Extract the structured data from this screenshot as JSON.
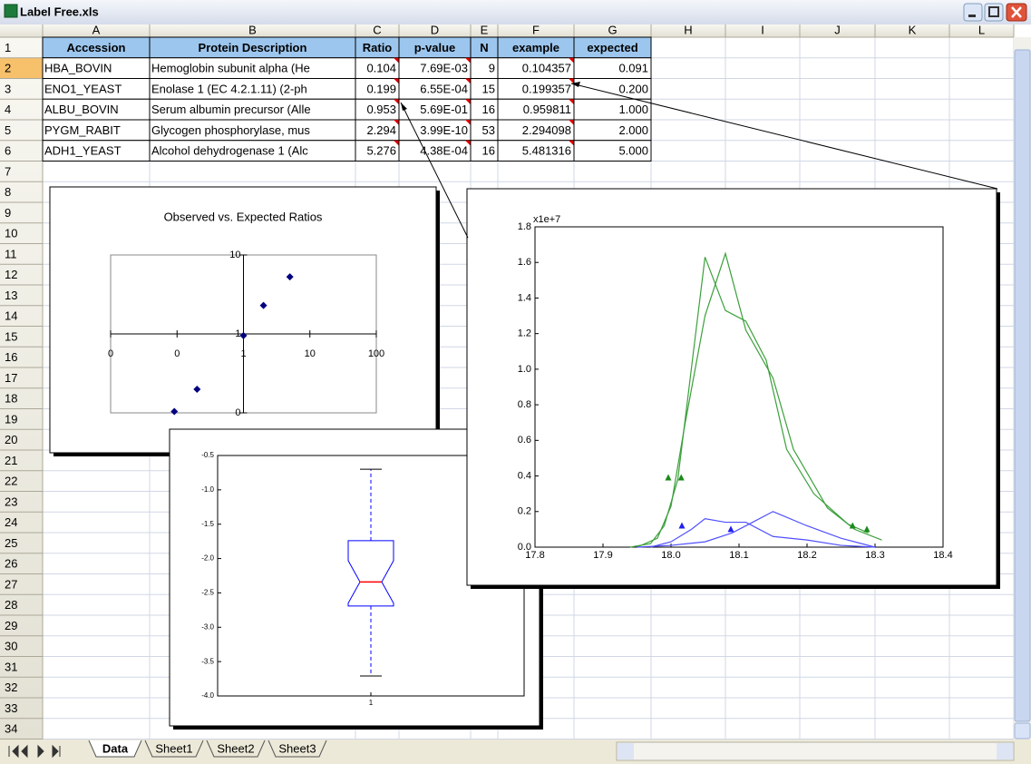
{
  "window": {
    "title": "Label Free.xls"
  },
  "columns": [
    "A",
    "B",
    "C",
    "D",
    "E",
    "F",
    "G",
    "H",
    "I",
    "J",
    "K",
    "L"
  ],
  "row_numbers": [
    1,
    2,
    3,
    4,
    5,
    6,
    7,
    8,
    9,
    10,
    11,
    12,
    13,
    14,
    15,
    16,
    17,
    18,
    19,
    20,
    21,
    22,
    23,
    24,
    25,
    26,
    27,
    28,
    29,
    30,
    31,
    32,
    33,
    34
  ],
  "table": {
    "header": [
      "Accession",
      "Protein Description",
      "Ratio",
      "p-value",
      "N",
      "example",
      "expected"
    ],
    "rows": [
      [
        "HBA_BOVIN",
        "Hemoglobin subunit alpha (He",
        "0.104",
        "7.69E-03",
        "9",
        "0.104357",
        "0.091"
      ],
      [
        "ENO1_YEAST",
        "Enolase 1 (EC 4.2.1.11) (2-ph",
        "0.199",
        "6.55E-04",
        "15",
        "0.199357",
        "0.200"
      ],
      [
        "ALBU_BOVIN",
        "Serum albumin precursor (Alle",
        "0.953",
        "5.69E-01",
        "16",
        "0.959811",
        "1.000"
      ],
      [
        "PYGM_RABIT",
        "Glycogen phosphorylase, mus",
        "2.294",
        "3.99E-10",
        "53",
        "2.294098",
        "2.000"
      ],
      [
        "ADH1_YEAST",
        "Alcohol dehydrogenase 1 (Alc",
        "5.276",
        "4.38E-04",
        "16",
        "5.481316",
        "5.000"
      ]
    ]
  },
  "sheet_tabs": [
    "Data",
    "Sheet1",
    "Sheet2",
    "Sheet3"
  ],
  "chart_data": [
    {
      "type": "scatter",
      "title": "Observed vs. Expected Ratios",
      "color": "#000080",
      "log_x": true,
      "log_y": true,
      "x_axis_at": 1,
      "y_axis_at": 1,
      "x": [
        0.091,
        0.2,
        1,
        2,
        5
      ],
      "values": [
        0.104,
        0.199,
        0.953,
        2.294,
        5.276
      ],
      "xlim": [
        0.01,
        100
      ],
      "ylim": [
        0.1,
        10
      ],
      "xticks": [
        {
          "value": 0.01,
          "label": "0"
        },
        {
          "value": 0.1,
          "label": "0"
        },
        1,
        10,
        100
      ],
      "yticks": [
        {
          "value": 0.1,
          "label": "0"
        },
        1,
        10
      ]
    },
    {
      "type": "box",
      "categories": [
        "1"
      ],
      "color": "#0000ff",
      "median_color": "#ff0000",
      "boxes": [
        {
          "whisker_low": -3.71,
          "q1": -2.69,
          "notch_low": -2.65,
          "median": -2.34,
          "notch_high": -2.03,
          "q3": -1.74,
          "whisker_high": -0.7
        }
      ],
      "ylim": [
        -4,
        -0.5
      ],
      "yticks": [
        {
          "value": -4,
          "label": "-4.0"
        },
        -3.5,
        {
          "value": -3,
          "label": "-3.0"
        },
        -2.5,
        {
          "value": -2,
          "label": "-2.0"
        },
        -1.5,
        {
          "value": -1,
          "label": "-1.0"
        },
        -0.5
      ]
    },
    {
      "type": "line",
      "y_scale_label": "x1e+7",
      "series": [
        {
          "color": "#3ca03c",
          "x": [
            17.94,
            17.97,
            17.99,
            18.01,
            18.05,
            18.08,
            18.11,
            18.14,
            18.17,
            18.21,
            18.26,
            18.29
          ],
          "values": [
            0,
            0.02,
            0.12,
            0.38,
            1.63,
            1.33,
            1.27,
            1.05,
            0.55,
            0.3,
            0.13,
            0.08
          ]
        },
        {
          "color": "#3ca03c",
          "x": [
            17.95,
            17.98,
            18.0,
            18.02,
            18.05,
            18.08,
            18.11,
            18.15,
            18.18,
            18.23,
            18.27,
            18.31
          ],
          "values": [
            0,
            0.05,
            0.23,
            0.68,
            1.3,
            1.65,
            1.22,
            0.95,
            0.55,
            0.22,
            0.1,
            0.04
          ]
        },
        {
          "color": "#5050ff",
          "x": [
            17.97,
            18.0,
            18.03,
            18.05,
            18.08,
            18.11,
            18.15,
            18.2,
            18.25,
            18.3
          ],
          "values": [
            0,
            0.03,
            0.1,
            0.16,
            0.14,
            0.14,
            0.06,
            0.04,
            0.01,
            0
          ]
        },
        {
          "color": "#5050ff",
          "x": [
            17.95,
            18.0,
            18.05,
            18.09,
            18.12,
            18.15,
            18.2,
            18.25,
            18.3
          ],
          "values": [
            0,
            0.01,
            0.03,
            0.08,
            0.14,
            0.2,
            0.12,
            0.05,
            0
          ]
        }
      ],
      "markers": [
        {
          "color": "#1a8a1a",
          "x": [
            17.996,
            18.015,
            18.267,
            18.288
          ],
          "values": [
            0.39,
            0.39,
            0.12,
            0.1
          ]
        },
        {
          "color": "#2020ee",
          "x": [
            18.016,
            18.088
          ],
          "values": [
            0.12,
            0.1
          ]
        }
      ],
      "xlim": [
        17.8,
        18.4
      ],
      "ylim": [
        0,
        1.8
      ],
      "xticks": [
        17.8,
        17.9,
        {
          "value": 18,
          "label": "18.0"
        },
        18.1,
        18.2,
        18.3,
        18.4
      ],
      "yticks": [
        {
          "value": 0,
          "label": "0.0"
        },
        0.2,
        0.4,
        0.6,
        0.8,
        {
          "value": 1,
          "label": "1.0"
        },
        1.2,
        1.4,
        1.6,
        1.8
      ]
    }
  ]
}
